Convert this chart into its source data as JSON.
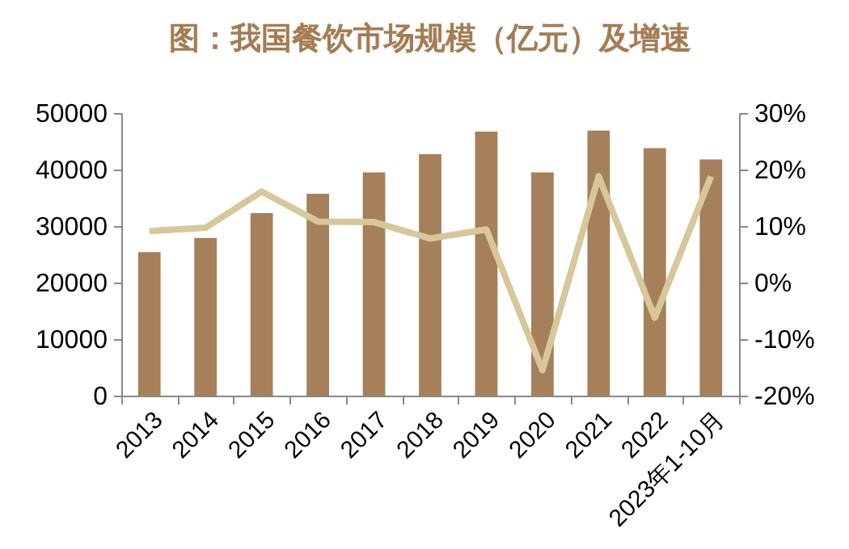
{
  "chart_data": {
    "type": "bar",
    "title": "图：我国餐饮市场规模（亿元）及增速",
    "categories": [
      "2013",
      "2014",
      "2015",
      "2016",
      "2017",
      "2018",
      "2019",
      "2020",
      "2021",
      "2022",
      "2023年1-10月"
    ],
    "series": [
      {
        "color": "#a6805a",
        "values": [
          25400,
          27900,
          32300,
          35700,
          39500,
          42700,
          46700,
          39500,
          46900,
          43800,
          41800
        ]
      },
      {
        "type": "line",
        "axis": "y2",
        "color": "#d8c79a",
        "values": [
          9.1,
          9.7,
          16.1,
          10.8,
          10.7,
          7.8,
          9.4,
          -15.5,
          18.8,
          -6.2,
          18.8
        ]
      }
    ],
    "ylim": [
      0,
      50000
    ],
    "yticks": [
      0,
      10000,
      20000,
      30000,
      40000,
      50000
    ],
    "y2lim": [
      -20,
      30
    ],
    "y2ticks": [
      {
        "value": -20,
        "label": "-20%"
      },
      {
        "value": -10,
        "label": "-10%"
      },
      {
        "value": 0,
        "label": "0%"
      },
      {
        "value": 10,
        "label": "10%"
      },
      {
        "value": 20,
        "label": "20%"
      },
      {
        "value": 30,
        "label": "30%"
      }
    ],
    "grid": false,
    "legend": false,
    "marker": "none",
    "line_style": "solid"
  }
}
